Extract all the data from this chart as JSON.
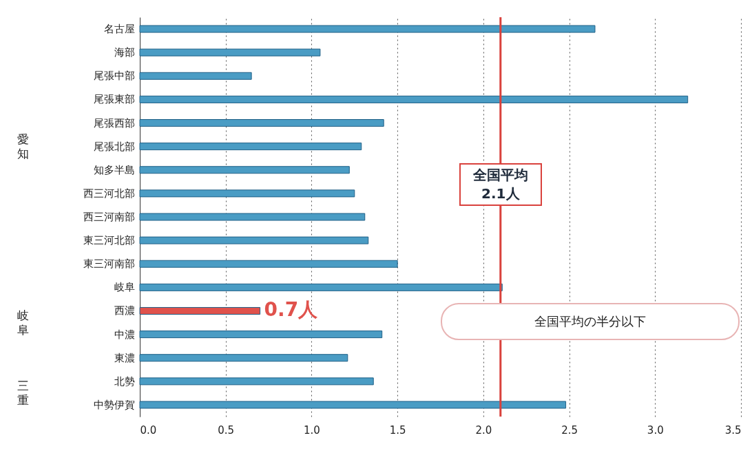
{
  "chart_data": {
    "type": "bar",
    "orientation": "horizontal",
    "categories": [
      "名古屋",
      "海部",
      "尾張中部",
      "尾張東部",
      "尾張西部",
      "尾張北部",
      "知多半島",
      "西三河北部",
      "西三河南部",
      "東三河北部",
      "東三河南部",
      "岐阜",
      "西濃",
      "中濃",
      "東濃",
      "北勢",
      "中勢伊賀"
    ],
    "values": [
      2.65,
      1.05,
      0.65,
      3.19,
      1.42,
      1.29,
      1.22,
      1.25,
      1.31,
      1.33,
      1.5,
      2.11,
      0.7,
      1.41,
      1.21,
      1.36,
      2.48
    ],
    "colors": [
      "#4a9cc4",
      "#4a9cc4",
      "#4a9cc4",
      "#4a9cc4",
      "#4a9cc4",
      "#4a9cc4",
      "#4a9cc4",
      "#4a9cc4",
      "#4a9cc4",
      "#4a9cc4",
      "#4a9cc4",
      "#4a9cc4",
      "#e0524c",
      "#4a9cc4",
      "#4a9cc4",
      "#4a9cc4",
      "#4a9cc4"
    ],
    "xlim": [
      0,
      3.5
    ],
    "xticks": [
      {
        "value": 0,
        "label": "0.0"
      },
      0.5,
      {
        "value": 1,
        "label": "1.0"
      },
      1.5,
      {
        "value": 2,
        "label": "2.0"
      },
      2.5,
      {
        "value": 3,
        "label": "3.0"
      },
      3.5
    ],
    "grid": "x",
    "ref_lines": [
      {
        "axis": "x",
        "value": 2.1,
        "label": "全国平均\n2.1人",
        "color": "#d9413c"
      }
    ],
    "annotations": [
      {
        "text": "0.7人",
        "x": 0.7,
        "y": "西濃"
      },
      "全国平均の半分以下",
      "愛知",
      "岐阜",
      "三重"
    ]
  }
}
